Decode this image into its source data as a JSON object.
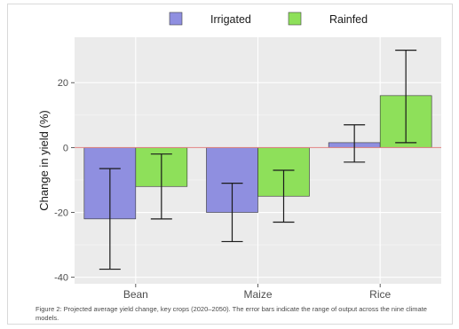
{
  "chart_data": {
    "type": "bar",
    "categories": [
      "Bean",
      "Maize",
      "Rice"
    ],
    "series": [
      {
        "name": "Irrigated",
        "values": [
          -22,
          -20,
          1.5
        ],
        "error_low": [
          -37.5,
          -29,
          -4.5
        ],
        "error_high": [
          -6.5,
          -11,
          7
        ],
        "color": "#8f8fe0"
      },
      {
        "name": "Rainfed",
        "values": [
          -12,
          -15,
          16
        ],
        "error_low": [
          -22,
          -23,
          1.5
        ],
        "error_high": [
          -2,
          -7,
          30
        ],
        "color": "#8ee05a"
      }
    ],
    "ylabel": "Change in yield (%)",
    "xlabel": "",
    "ylim": [
      -42,
      34
    ],
    "yticks": [
      -40,
      -20,
      0,
      20
    ],
    "ytick_labels": [
      "-40",
      "-20",
      "0",
      "20"
    ],
    "grid": true,
    "legend_position": "top",
    "zero_line_color": "#e08080",
    "panel_color": "#ebebeb"
  },
  "caption": "Figure 2: Projected average yield change, key crops (2020–2050). The error bars indicate the range of output across the nine climate models."
}
